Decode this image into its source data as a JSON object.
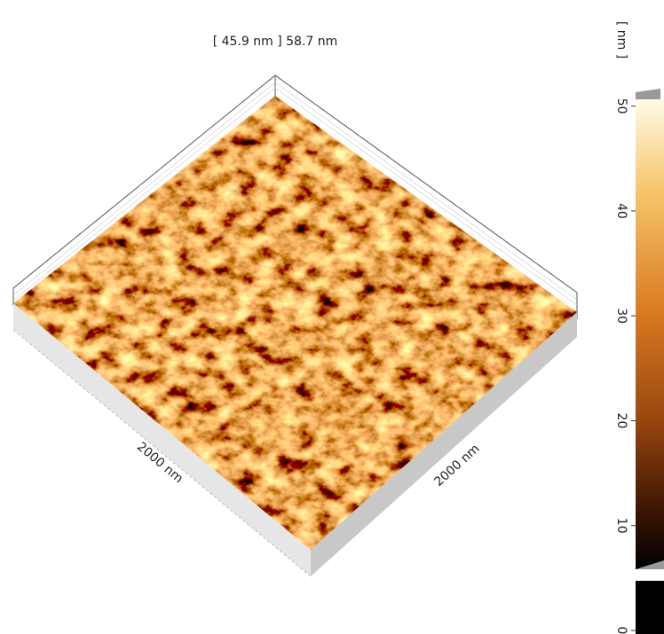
{
  "title": "[ 45.9 nm ] 58.7 nm",
  "x_label": "2000 nm",
  "y_label": "2000 nm",
  "colorbar": {
    "unit": "[ nm ]",
    "lim": [
      0,
      52
    ],
    "ticks": [
      0,
      10,
      20,
      30,
      40,
      50
    ]
  }
}
